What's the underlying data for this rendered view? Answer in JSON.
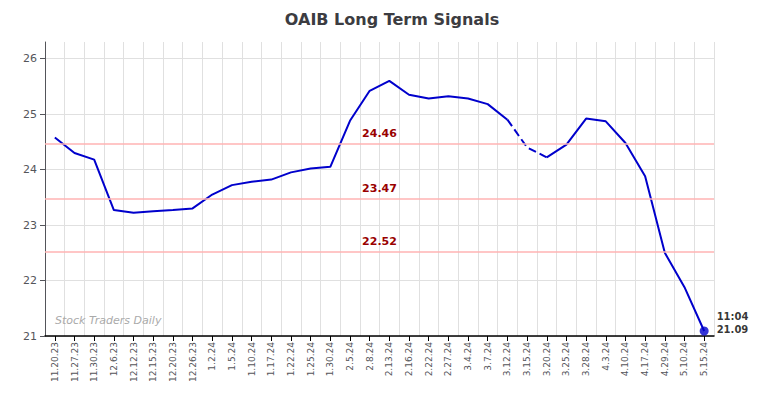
{
  "chart_data": {
    "type": "line",
    "title": "OAIB Long Term Signals",
    "categories": [
      "11.20.23",
      "11.27.23",
      "11.30.23",
      "12.6.23",
      "12.12.23",
      "12.15.23",
      "12.20.23",
      "12.26.23",
      "1.2.24",
      "1.5.24",
      "1.10.24",
      "1.17.24",
      "1.22.24",
      "1.25.24",
      "1.30.24",
      "2.5.24",
      "2.8.24",
      "2.13.24",
      "2.16.24",
      "2.22.24",
      "2.27.24",
      "3.4.24",
      "3.7.24",
      "3.12.24",
      "3.15.24",
      "3.20.24",
      "3.25.24",
      "3.28.24",
      "4.3.24",
      "4.10.24",
      "4.17.24",
      "4.29.24",
      "5.10.24",
      "5.15.24"
    ],
    "series": [
      {
        "color": "#0000cc",
        "line_style": "solid",
        "values": [
          24.58,
          24.3,
          24.18,
          23.27,
          23.22,
          23.25,
          23.27,
          23.3,
          23.55,
          23.72,
          23.78,
          23.82,
          23.95,
          24.02,
          24.05,
          24.88,
          25.42,
          25.6,
          25.35,
          25.28,
          25.32,
          25.28,
          25.18,
          24.9,
          null,
          null,
          null,
          null,
          null,
          null,
          null,
          null,
          null,
          null
        ]
      },
      {
        "color": "#0000cc",
        "line_style": "dashed",
        "values": [
          null,
          null,
          null,
          null,
          null,
          null,
          null,
          null,
          null,
          null,
          null,
          null,
          null,
          null,
          null,
          null,
          null,
          null,
          null,
          null,
          null,
          null,
          null,
          24.9,
          24.4,
          24.22,
          null,
          null,
          null,
          null,
          null,
          null,
          null,
          null
        ]
      },
      {
        "color": "#0000cc",
        "line_style": "solid",
        "values": [
          null,
          null,
          null,
          null,
          null,
          null,
          null,
          null,
          null,
          null,
          null,
          null,
          null,
          null,
          null,
          null,
          null,
          null,
          null,
          null,
          null,
          null,
          null,
          null,
          null,
          24.22,
          24.45,
          24.92,
          24.87,
          24.48,
          23.88,
          22.5,
          21.88,
          21.09
        ]
      }
    ],
    "hlines": [
      24.46,
      23.47,
      22.52
    ],
    "hline_color": "#ffb3b3",
    "hline_label_color": "#990000",
    "annotations": [
      {
        "text": "11:04\n21.09",
        "category": "5.15.24",
        "value": 21.09,
        "marker": "circle",
        "color": "#0000cc"
      }
    ],
    "watermark": "Stock Traders Daily",
    "watermark_color": "#aaaaaa",
    "ylim": [
      21.0,
      26.3
    ],
    "yticks": [
      21,
      22,
      23,
      24,
      25,
      26
    ],
    "grid": true
  }
}
